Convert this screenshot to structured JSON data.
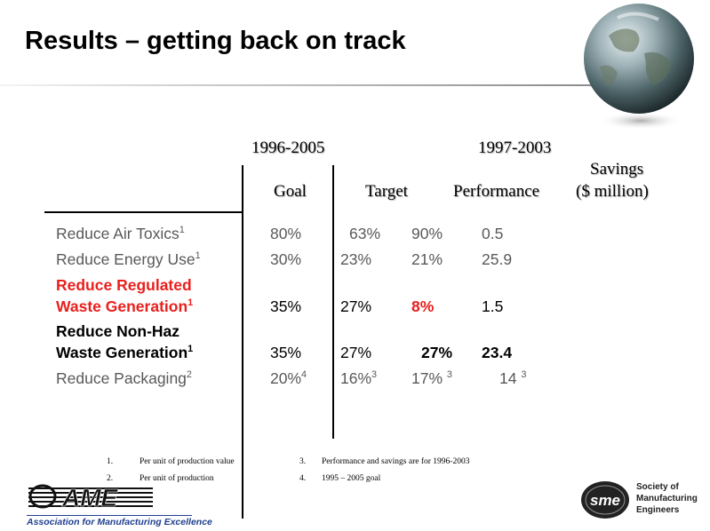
{
  "title": "Results – getting back on track",
  "headers": {
    "range_left": "1996-2005",
    "range_right": "1997-2003",
    "goal": "Goal",
    "target": "Target",
    "performance": "Performance",
    "savings_line1": "Savings",
    "savings_line2": "($ million)"
  },
  "rows": [
    {
      "label": "Reduce Air Toxics",
      "label_sup": "1",
      "goal": "80%",
      "target": "63%",
      "performance": "90%",
      "savings": "0.5"
    },
    {
      "label": "Reduce Energy Use",
      "label_sup": "1",
      "goal": "30%",
      "target": "23%",
      "performance": "21%",
      "savings": "25.9"
    },
    {
      "label_line1": "Reduce Regulated",
      "label_line2": "Waste Generation",
      "label_sup": "1",
      "goal": "35%",
      "target": "27%",
      "performance": "8%",
      "savings": "1.5"
    },
    {
      "label_line1": "Reduce Non-Haz",
      "label_line2": "Waste Generation",
      "label_sup": "1",
      "goal": "35%",
      "target": "27%",
      "performance": "27%",
      "savings": "23.4"
    },
    {
      "label": "Reduce Packaging",
      "label_sup": "2",
      "goal": "20%",
      "goal_sup": "4",
      "target": "16%",
      "target_sup": "3",
      "performance": "17%",
      "performance_sup": "3",
      "savings": "14",
      "savings_sup": "3"
    }
  ],
  "footnotes": [
    {
      "num": "1.",
      "text": "Per unit of production value"
    },
    {
      "num": "2.",
      "text": "Per unit of production"
    },
    {
      "num": "3.",
      "text": "Performance and savings are for 1996-2003"
    },
    {
      "num": "4.",
      "text": "1995 – 2005 goal"
    }
  ],
  "logos": {
    "ame_text": "Association for Manufacturing Excellence",
    "sme_line1": "Society of",
    "sme_line2": "Manufacturing",
    "sme_line3": "Engineers"
  },
  "colors": {
    "highlight_red": "#e8201e",
    "label_gray": "#595959",
    "ame_blue": "#1f3f8f"
  }
}
